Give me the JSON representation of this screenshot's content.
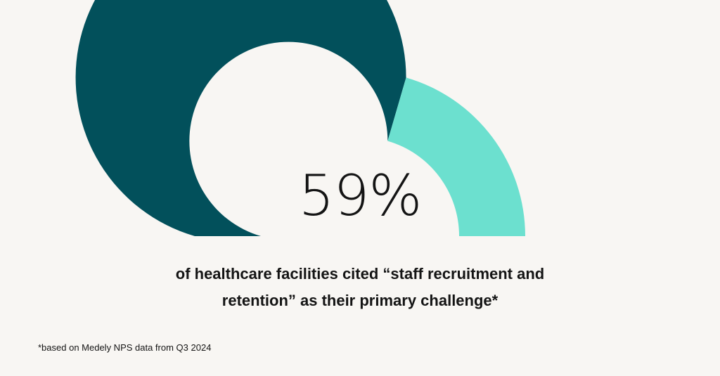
{
  "chart_data": {
    "type": "pie",
    "variant": "semicircle-gauge",
    "value": 59,
    "max": 100,
    "display_value": "59%",
    "caption_line1": "of healthcare facilities cited “staff recruitment and",
    "caption_line2": "retention” as their primary challenge*",
    "footnote": "*based on Medely NPS data from Q3 2024",
    "colors": {
      "filled": "#02505b",
      "remaining": "#6ce0cf",
      "background": "#f8f6f3",
      "text": "#141414"
    }
  }
}
